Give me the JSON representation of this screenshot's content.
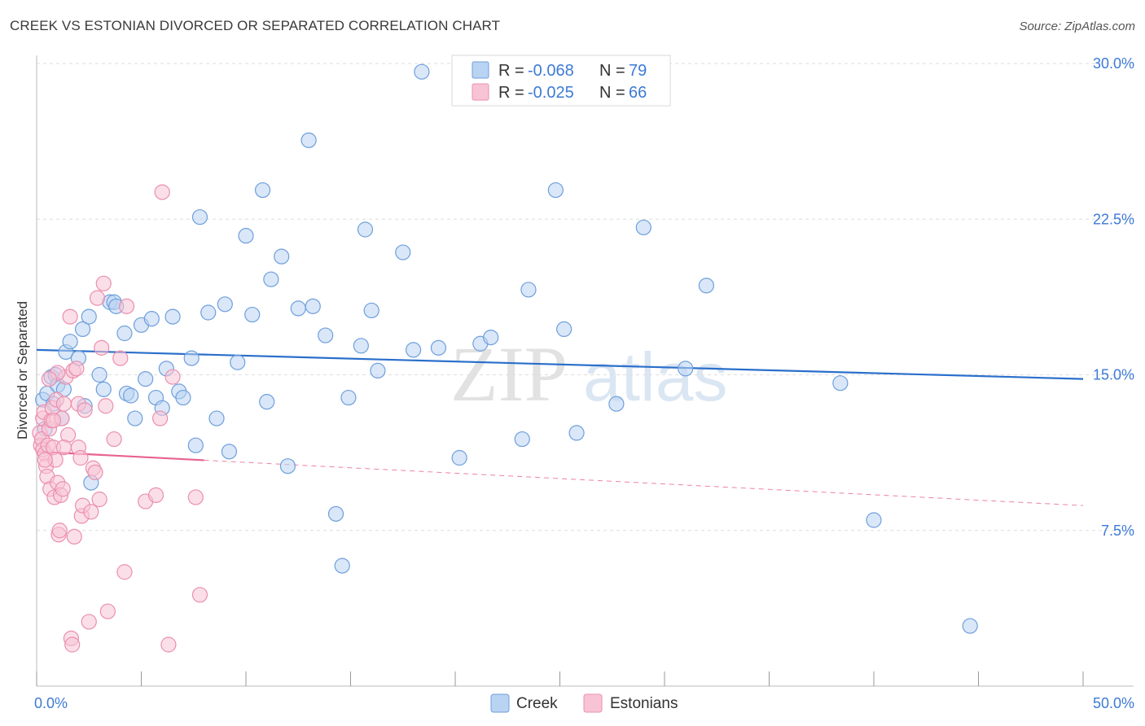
{
  "title": "CREEK VS ESTONIAN DIVORCED OR SEPARATED CORRELATION CHART",
  "source": "Source: ZipAtlas.com",
  "watermark": {
    "zip": "ZIP",
    "atlas": "atlas"
  },
  "colors": {
    "creek_fill": "#b9d3f3",
    "creek_stroke": "#6f9fdc",
    "creek_line": "#2a6fcb",
    "est_fill": "#f8c4d5",
    "est_stroke": "#eb8fae",
    "est_line": "#e8628f",
    "tick_text": "#3d7ad6",
    "grid": "#dddddd"
  },
  "legend": {
    "r_label": "R =",
    "n_label": "N =",
    "rows": [
      {
        "r": "-0.068",
        "n": "79"
      },
      {
        "r": "-0.025",
        "n": "66"
      }
    ]
  },
  "chart_data": {
    "type": "scatter",
    "xlabel": "",
    "ylabel": "Divorced or Separated",
    "xlim": [
      0,
      50
    ],
    "ylim": [
      0,
      30
    ],
    "x_tick_labels": [
      "0.0%",
      "50.0%"
    ],
    "y_ticks": [
      7.5,
      15.0,
      22.5,
      30.0
    ],
    "y_tick_labels": [
      "7.5%",
      "15.0%",
      "22.5%",
      "30.0%"
    ],
    "legend_position": "top-center",
    "series": [
      {
        "name": "Creek",
        "r": -0.068,
        "n": 79,
        "trend": {
          "x": [
            0,
            50
          ],
          "y": [
            16.2,
            14.8
          ],
          "solid_until": 50
        },
        "points": [
          [
            0.3,
            13.8
          ],
          [
            0.4,
            12.4
          ],
          [
            0.5,
            14.1
          ],
          [
            0.7,
            14.9
          ],
          [
            0.8,
            13.6
          ],
          [
            0.9,
            15.0
          ],
          [
            1.0,
            14.5
          ],
          [
            1.2,
            12.9
          ],
          [
            1.3,
            14.3
          ],
          [
            1.4,
            16.1
          ],
          [
            1.6,
            16.6
          ],
          [
            2.0,
            15.8
          ],
          [
            2.2,
            17.2
          ],
          [
            2.3,
            13.5
          ],
          [
            2.5,
            17.8
          ],
          [
            2.6,
            9.8
          ],
          [
            3.0,
            15.0
          ],
          [
            3.2,
            14.3
          ],
          [
            3.5,
            18.5
          ],
          [
            3.7,
            18.5
          ],
          [
            3.8,
            18.3
          ],
          [
            4.2,
            17.0
          ],
          [
            4.3,
            14.1
          ],
          [
            4.5,
            14.0
          ],
          [
            4.7,
            12.9
          ],
          [
            5.0,
            17.4
          ],
          [
            5.2,
            14.8
          ],
          [
            5.5,
            17.7
          ],
          [
            5.7,
            13.9
          ],
          [
            6.0,
            13.4
          ],
          [
            6.2,
            15.3
          ],
          [
            6.5,
            17.8
          ],
          [
            6.8,
            14.2
          ],
          [
            7.0,
            13.9
          ],
          [
            7.4,
            15.8
          ],
          [
            7.6,
            11.6
          ],
          [
            7.8,
            22.6
          ],
          [
            8.2,
            18.0
          ],
          [
            8.6,
            12.9
          ],
          [
            9.0,
            18.4
          ],
          [
            9.2,
            11.3
          ],
          [
            9.6,
            15.6
          ],
          [
            10.0,
            21.7
          ],
          [
            10.3,
            17.9
          ],
          [
            10.8,
            23.9
          ],
          [
            11.0,
            13.7
          ],
          [
            11.2,
            19.6
          ],
          [
            11.7,
            20.7
          ],
          [
            12.0,
            10.6
          ],
          [
            12.5,
            18.2
          ],
          [
            13.2,
            18.3
          ],
          [
            13.0,
            26.3
          ],
          [
            13.8,
            16.9
          ],
          [
            14.3,
            8.3
          ],
          [
            14.6,
            5.8
          ],
          [
            14.9,
            13.9
          ],
          [
            15.5,
            16.4
          ],
          [
            16.0,
            18.1
          ],
          [
            16.3,
            15.2
          ],
          [
            15.7,
            22.0
          ],
          [
            17.5,
            20.9
          ],
          [
            18.0,
            16.2
          ],
          [
            18.4,
            29.6
          ],
          [
            19.2,
            16.3
          ],
          [
            20.2,
            11.0
          ],
          [
            21.2,
            16.5
          ],
          [
            21.7,
            16.8
          ],
          [
            23.2,
            11.9
          ],
          [
            23.5,
            19.1
          ],
          [
            24.8,
            23.9
          ],
          [
            25.2,
            17.2
          ],
          [
            25.8,
            12.2
          ],
          [
            27.7,
            13.6
          ],
          [
            29.0,
            22.1
          ],
          [
            31.0,
            15.3
          ],
          [
            32.0,
            19.3
          ],
          [
            38.4,
            14.6
          ],
          [
            40.0,
            8.0
          ],
          [
            44.6,
            2.9
          ]
        ]
      },
      {
        "name": "Estonians",
        "r": -0.025,
        "n": 66,
        "trend": {
          "x": [
            0,
            50
          ],
          "y": [
            11.3,
            8.7
          ],
          "solid_until": 8
        },
        "points": [
          [
            0.15,
            12.2
          ],
          [
            0.2,
            11.6
          ],
          [
            0.25,
            11.9
          ],
          [
            0.3,
            11.4
          ],
          [
            0.3,
            12.9
          ],
          [
            0.35,
            13.2
          ],
          [
            0.4,
            11.2
          ],
          [
            0.45,
            10.6
          ],
          [
            0.5,
            10.1
          ],
          [
            0.55,
            11.6
          ],
          [
            0.6,
            12.4
          ],
          [
            0.65,
            9.5
          ],
          [
            0.7,
            12.8
          ],
          [
            0.75,
            13.4
          ],
          [
            0.8,
            11.5
          ],
          [
            0.85,
            9.1
          ],
          [
            0.9,
            10.9
          ],
          [
            0.95,
            13.8
          ],
          [
            1.0,
            9.8
          ],
          [
            1.05,
            7.3
          ],
          [
            1.1,
            7.5
          ],
          [
            1.15,
            9.2
          ],
          [
            1.2,
            12.9
          ],
          [
            1.25,
            9.5
          ],
          [
            1.3,
            13.6
          ],
          [
            1.4,
            14.9
          ],
          [
            1.5,
            12.1
          ],
          [
            1.6,
            17.8
          ],
          [
            1.65,
            2.3
          ],
          [
            1.7,
            2.0
          ],
          [
            1.75,
            15.2
          ],
          [
            1.8,
            7.2
          ],
          [
            2.0,
            13.6
          ],
          [
            2.0,
            11.5
          ],
          [
            2.1,
            11.0
          ],
          [
            2.15,
            8.2
          ],
          [
            2.2,
            8.7
          ],
          [
            2.3,
            13.3
          ],
          [
            2.5,
            3.1
          ],
          [
            2.6,
            8.4
          ],
          [
            2.7,
            10.5
          ],
          [
            2.8,
            10.3
          ],
          [
            2.9,
            18.7
          ],
          [
            3.0,
            9.0
          ],
          [
            3.1,
            16.3
          ],
          [
            3.2,
            19.4
          ],
          [
            3.3,
            13.5
          ],
          [
            3.4,
            3.6
          ],
          [
            3.7,
            11.9
          ],
          [
            4.0,
            15.8
          ],
          [
            4.2,
            5.5
          ],
          [
            4.3,
            18.3
          ],
          [
            5.2,
            8.9
          ],
          [
            5.7,
            9.2
          ],
          [
            5.9,
            12.9
          ],
          [
            6.0,
            23.8
          ],
          [
            6.3,
            2.0
          ],
          [
            6.5,
            14.9
          ],
          [
            7.6,
            9.1
          ],
          [
            7.8,
            4.4
          ],
          [
            1.0,
            15.1
          ],
          [
            0.8,
            12.8
          ],
          [
            1.3,
            11.5
          ],
          [
            0.6,
            14.8
          ],
          [
            0.4,
            10.9
          ],
          [
            1.9,
            15.3
          ]
        ]
      }
    ]
  },
  "bottom_legend": [
    "Creek",
    "Estonians"
  ]
}
